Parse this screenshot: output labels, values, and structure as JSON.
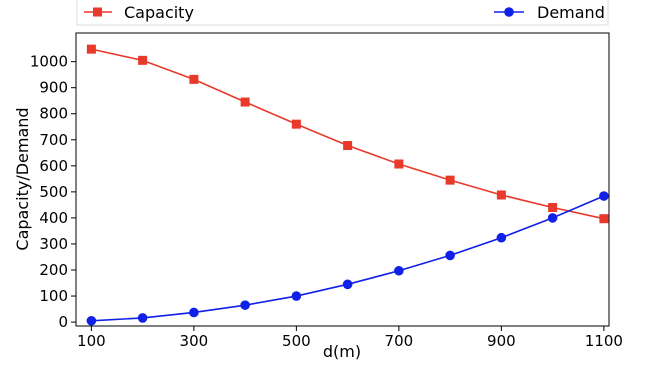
{
  "chart_data": {
    "type": "line",
    "x": [
      100,
      200,
      300,
      400,
      500,
      600,
      700,
      800,
      900,
      1000,
      1100
    ],
    "series": [
      {
        "name": "Capacity",
        "color": "#e8392b",
        "marker": "square",
        "values": [
          1048,
          1005,
          932,
          845,
          760,
          678,
          607,
          545,
          488,
          440,
          397
        ]
      },
      {
        "name": "Demand",
        "color": "#1020e8",
        "marker": "circle",
        "values": [
          5,
          16,
          37,
          65,
          100,
          145,
          197,
          256,
          324,
          400,
          484
        ]
      }
    ],
    "xlabel": "d(m)",
    "ylabel": "Capacity/Demand",
    "xticks": [
      100,
      300,
      500,
      700,
      900,
      1100
    ],
    "xtick_labels": [
      "100",
      "300",
      "500",
      "700",
      "900",
      "1100"
    ],
    "yticks": [
      0,
      100,
      200,
      300,
      400,
      500,
      600,
      700,
      800,
      900,
      1000
    ],
    "ytick_labels": [
      "0",
      "100",
      "200",
      "300",
      "400",
      "500",
      "600",
      "700",
      "800",
      "900",
      "1000"
    ],
    "xlim": [
      70,
      1110
    ],
    "ylim": [
      -15,
      1110
    ],
    "grid": false,
    "legend": {
      "placement": "top, outside plot, spanning width",
      "entries": [
        "Capacity",
        "Demand"
      ]
    }
  }
}
